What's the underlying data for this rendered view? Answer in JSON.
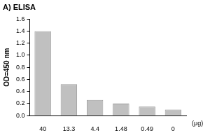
{
  "chart_data": {
    "type": "bar",
    "title": "A) ELISA",
    "ylabel": "OD=450 nm",
    "xlabel": "(μg)",
    "categories": [
      "40",
      "13.3",
      "4.4",
      "1.48",
      "0.49",
      "0"
    ],
    "values": [
      1.4,
      0.52,
      0.26,
      0.2,
      0.15,
      0.1
    ],
    "color": "#c0c0c0",
    "ylim": [
      0,
      1.6
    ],
    "yticks": [
      {
        "value": 0,
        "label": "0.0"
      },
      0.2,
      0.4,
      0.6,
      0.8,
      {
        "value": 1,
        "label": "1.0"
      },
      1.2,
      1.4,
      1.6
    ],
    "grid": false
  }
}
